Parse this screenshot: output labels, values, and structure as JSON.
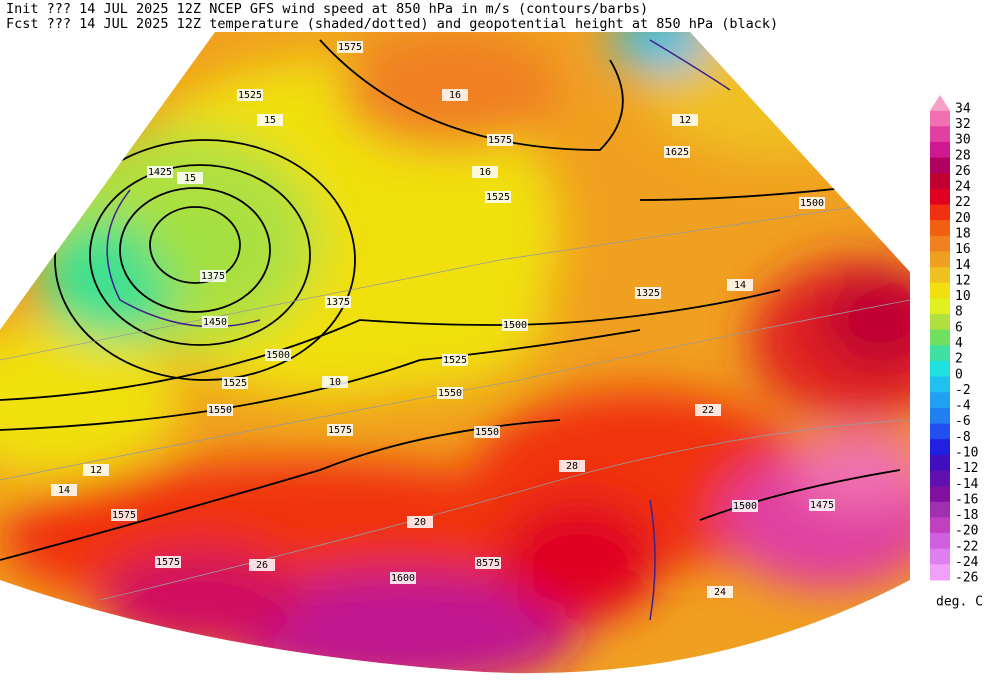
{
  "header": {
    "line1": "Init  ??? 14 JUL 2025 12Z  NCEP GFS wind speed at 850 hPa in m/s (contours/barbs)",
    "line2": "Fcst ??? 14 JUL 2025 12Z  temperature (shaded/dotted) and geopotential height at 850 hPa (black)"
  },
  "colorbar": {
    "labels": [
      "34",
      "32",
      "30",
      "28",
      "26",
      "24",
      "22",
      "20",
      "18",
      "16",
      "14",
      "12",
      "10",
      "8",
      "6",
      "4",
      "2",
      "0",
      "-2",
      "-4",
      "-6",
      "-8",
      "-10",
      "-12",
      "-14",
      "-16",
      "-18",
      "-20",
      "-22",
      "-24",
      "-26"
    ],
    "colors": [
      "#f8a0c8",
      "#f070b0",
      "#e040a0",
      "#d01890",
      "#b00060",
      "#c00030",
      "#e00020",
      "#f03010",
      "#f06010",
      "#f08020",
      "#f0a020",
      "#f0c020",
      "#f0e010",
      "#e0f020",
      "#b0e040",
      "#70e060",
      "#40e0a0",
      "#20e0e0",
      "#20c0f0",
      "#20a0f0",
      "#2080f0",
      "#2050f0",
      "#2020e0",
      "#4010c0",
      "#6010b0",
      "#8010a0",
      "#a030b0",
      "#c040c0",
      "#d060e0",
      "#e080f0",
      "#f0a0f8"
    ],
    "unit": "deg. C"
  },
  "contour_labels": [
    "1575",
    "1525",
    "1425",
    "1375",
    "1450",
    "1500",
    "1525",
    "1550",
    "1575",
    "1575",
    "1525",
    "1500",
    "1525",
    "1550",
    "1550",
    "1625",
    "1500",
    "1325",
    "1500",
    "1475",
    "1575",
    "1575",
    "1600",
    "8575",
    "1375",
    "15",
    "15",
    "14",
    "16",
    "12",
    "10",
    "16",
    "20",
    "22",
    "26",
    "24",
    "28",
    "12",
    "14"
  ]
}
